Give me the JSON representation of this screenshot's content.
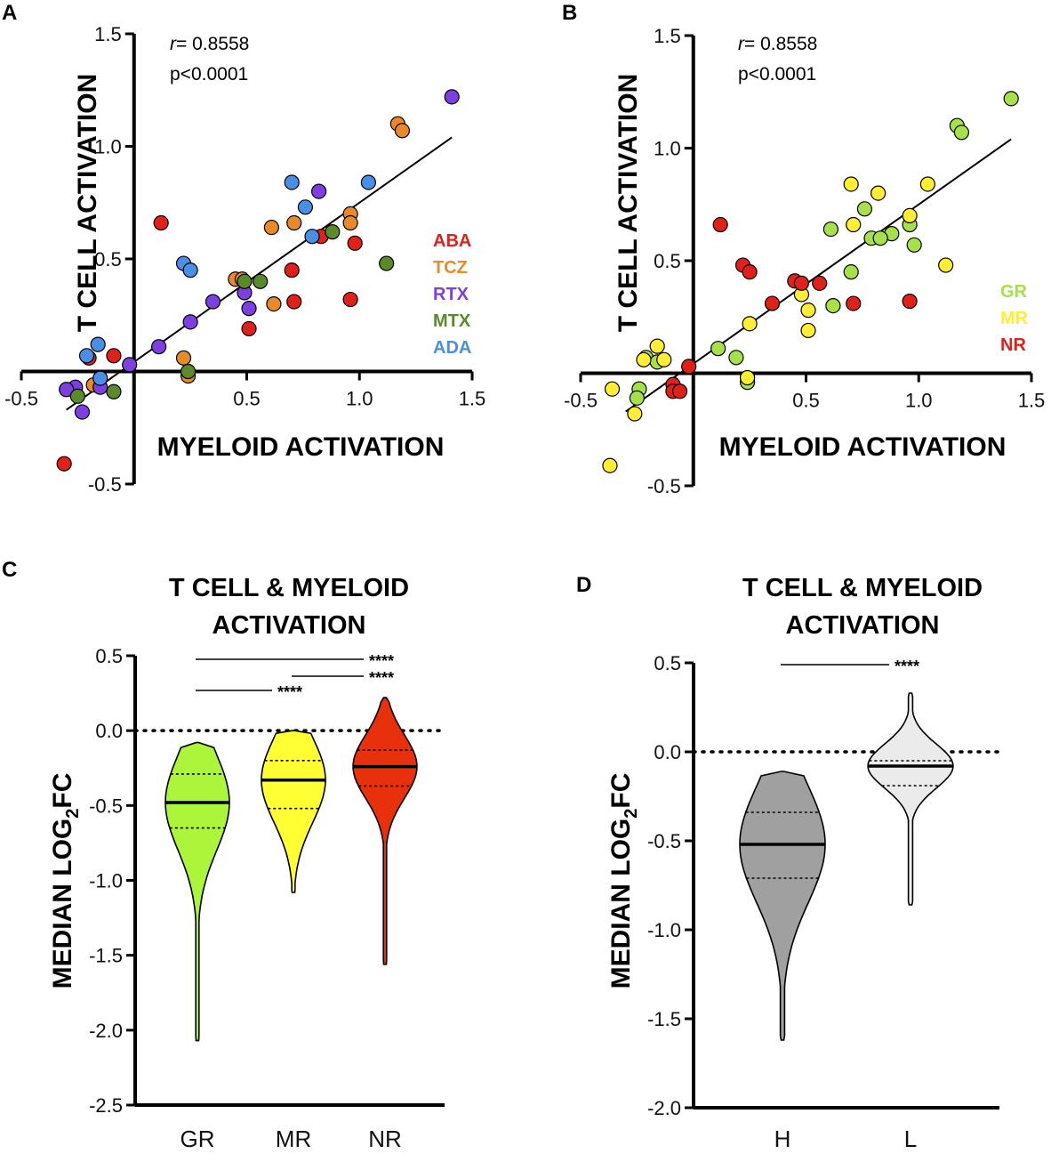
{
  "chart_data": [
    {
      "panel": "A",
      "type": "scatter",
      "xlabel": "MYELOID ACTIVATION",
      "ylabel": "T CELL ACTIVATION",
      "xlim": [
        -0.5,
        1.5
      ],
      "ylim": [
        -0.5,
        1.5
      ],
      "xticks": [
        "-0.5",
        "0.5",
        "1.0",
        "1.5"
      ],
      "yticks": [
        "-0.5",
        "0.5",
        "1.0",
        "1.5"
      ],
      "stat_r_label": "r",
      "stat_r_value": "= 0.8558",
      "stat_p": "p<0.0001",
      "fit_line": {
        "x0": -0.3,
        "y0": -0.17,
        "x1": 1.41,
        "y1": 1.04
      },
      "legend": [
        {
          "name": "ABA",
          "color": "#e0211b"
        },
        {
          "name": "TCZ",
          "color": "#e88a2a"
        },
        {
          "name": "RTX",
          "color": "#7d3fe0"
        },
        {
          "name": "MTX",
          "color": "#5a8a2a"
        },
        {
          "name": "ADA",
          "color": "#4a8fe6"
        }
      ],
      "series": [
        {
          "name": "ABA",
          "color": "#e0211b",
          "points": [
            [
              0.12,
              0.66
            ],
            [
              0.83,
              0.6
            ],
            [
              0.98,
              0.57
            ],
            [
              0.7,
              0.45
            ],
            [
              0.71,
              0.31
            ],
            [
              0.51,
              0.19
            ],
            [
              0.96,
              0.32
            ],
            [
              -0.2,
              0.06
            ],
            [
              -0.09,
              0.07
            ],
            [
              -0.31,
              -0.41
            ]
          ]
        },
        {
          "name": "TCZ",
          "color": "#e88a2a",
          "points": [
            [
              1.17,
              1.1
            ],
            [
              1.19,
              1.07
            ],
            [
              0.96,
              0.7
            ],
            [
              0.96,
              0.66
            ],
            [
              0.71,
              0.66
            ],
            [
              0.61,
              0.64
            ],
            [
              0.45,
              0.41
            ],
            [
              0.48,
              0.41
            ],
            [
              0.62,
              0.3
            ],
            [
              0.22,
              0.06
            ],
            [
              0.24,
              -0.02
            ],
            [
              -0.18,
              -0.06
            ]
          ]
        },
        {
          "name": "RTX",
          "color": "#7d3fe0",
          "points": [
            [
              1.41,
              1.22
            ],
            [
              0.82,
              0.8
            ],
            [
              0.49,
              0.35
            ],
            [
              0.51,
              0.28
            ],
            [
              0.35,
              0.31
            ],
            [
              0.25,
              0.22
            ],
            [
              0.11,
              0.11
            ],
            [
              -0.02,
              0.03
            ],
            [
              -0.26,
              -0.07
            ],
            [
              -0.15,
              -0.07
            ],
            [
              -0.3,
              -0.08
            ],
            [
              -0.23,
              -0.18
            ]
          ]
        },
        {
          "name": "MTX",
          "color": "#5a8a2a",
          "points": [
            [
              0.88,
              0.62
            ],
            [
              1.12,
              0.48
            ],
            [
              0.56,
              0.4
            ],
            [
              0.49,
              0.4
            ],
            [
              0.24,
              0.0
            ],
            [
              -0.09,
              -0.09
            ],
            [
              -0.25,
              -0.11
            ]
          ]
        },
        {
          "name": "ADA",
          "color": "#4a8fe6",
          "points": [
            [
              0.7,
              0.84
            ],
            [
              1.04,
              0.84
            ],
            [
              0.76,
              0.73
            ],
            [
              0.79,
              0.6
            ],
            [
              0.22,
              0.48
            ],
            [
              0.25,
              0.45
            ],
            [
              -0.16,
              0.12
            ],
            [
              -0.21,
              0.07
            ],
            [
              -0.15,
              -0.03
            ]
          ]
        }
      ]
    },
    {
      "panel": "B",
      "type": "scatter",
      "xlabel": "MYELOID ACTIVATION",
      "ylabel": "T CELL ACTIVATION",
      "xlim": [
        -0.5,
        1.5
      ],
      "ylim": [
        -0.5,
        1.5
      ],
      "xticks": [
        "-0.5",
        "0.5",
        "1.0",
        "1.5"
      ],
      "yticks": [
        "-0.5",
        "0.5",
        "1.0",
        "1.5"
      ],
      "stat_r_label": "r",
      "stat_r_value": "= 0.8558",
      "stat_p": "p<0.0001",
      "fit_line": {
        "x0": -0.3,
        "y0": -0.17,
        "x1": 1.41,
        "y1": 1.04
      },
      "legend": [
        {
          "name": "GR",
          "color": "#a8e04a"
        },
        {
          "name": "MR",
          "color": "#ffee33"
        },
        {
          "name": "NR",
          "color": "#e0211b"
        }
      ],
      "series": [
        {
          "name": "GR",
          "color": "#a8e04a",
          "points": [
            [
              1.41,
              1.22
            ],
            [
              1.17,
              1.1
            ],
            [
              1.19,
              1.07
            ],
            [
              0.76,
              0.73
            ],
            [
              0.96,
              0.66
            ],
            [
              0.61,
              0.64
            ],
            [
              0.88,
              0.62
            ],
            [
              0.79,
              0.6
            ],
            [
              0.83,
              0.6
            ],
            [
              0.98,
              0.57
            ],
            [
              0.7,
              0.45
            ],
            [
              0.62,
              0.3
            ],
            [
              0.11,
              0.11
            ],
            [
              0.19,
              0.07
            ],
            [
              -0.21,
              0.07
            ],
            [
              -0.16,
              0.05
            ],
            [
              0.24,
              -0.02
            ],
            [
              0.24,
              -0.04
            ],
            [
              -0.24,
              -0.07
            ],
            [
              -0.25,
              -0.11
            ]
          ]
        },
        {
          "name": "MR",
          "color": "#ffee33",
          "points": [
            [
              0.7,
              0.84
            ],
            [
              0.82,
              0.8
            ],
            [
              1.04,
              0.84
            ],
            [
              0.96,
              0.7
            ],
            [
              0.71,
              0.66
            ],
            [
              1.12,
              0.48
            ],
            [
              0.48,
              0.35
            ],
            [
              0.51,
              0.28
            ],
            [
              0.25,
              0.22
            ],
            [
              0.51,
              0.19
            ],
            [
              -0.16,
              0.12
            ],
            [
              -0.22,
              0.06
            ],
            [
              -0.13,
              0.06
            ],
            [
              0.24,
              -0.02
            ],
            [
              -0.36,
              -0.07
            ],
            [
              -0.26,
              -0.18
            ],
            [
              -0.37,
              -0.41
            ]
          ]
        },
        {
          "name": "NR",
          "color": "#e0211b",
          "points": [
            [
              0.12,
              0.66
            ],
            [
              0.22,
              0.48
            ],
            [
              0.25,
              0.45
            ],
            [
              0.45,
              0.41
            ],
            [
              0.48,
              0.4
            ],
            [
              0.56,
              0.4
            ],
            [
              0.35,
              0.31
            ],
            [
              0.71,
              0.31
            ],
            [
              0.96,
              0.32
            ],
            [
              -0.02,
              0.03
            ],
            [
              -0.09,
              -0.05
            ],
            [
              -0.09,
              -0.08
            ],
            [
              -0.06,
              -0.08
            ]
          ]
        }
      ]
    },
    {
      "panel": "C",
      "type": "violin",
      "title_lines": [
        "T CELL & MYELOID",
        "ACTIVATION"
      ],
      "ylabel_main": "MEDIAN LOG",
      "ylabel_sub": "2",
      "ylabel_tail": "FC",
      "ylim": [
        -2.5,
        0.5
      ],
      "yticks": [
        "0.5",
        "0.0",
        "-0.5",
        "-1.0",
        "-1.5",
        "-2.0",
        "-2.5"
      ],
      "categories": [
        "GR",
        "MR",
        "NR"
      ],
      "colors": [
        "#adf53a",
        "#ffff33",
        "#e8300a"
      ],
      "median": [
        -0.48,
        -0.33,
        -0.24
      ],
      "q1": [
        -0.65,
        -0.52,
        -0.37
      ],
      "q3": [
        -0.29,
        -0.2,
        -0.13
      ],
      "min": [
        -2.07,
        -1.08,
        -1.56
      ],
      "max": [
        -0.08,
        0.0,
        0.22
      ],
      "significance": [
        {
          "from": "GR",
          "to": "NR",
          "label": "****"
        },
        {
          "from": "MR",
          "to": "NR",
          "label": "****"
        },
        {
          "from": "GR",
          "to": "MR",
          "label": "****"
        }
      ]
    },
    {
      "panel": "D",
      "type": "violin",
      "title_lines": [
        "T CELL & MYELOID",
        "ACTIVATION"
      ],
      "ylabel_main": "MEDIAN LOG",
      "ylabel_sub": "2",
      "ylabel_tail": "FC",
      "ylim": [
        -2.0,
        0.5
      ],
      "yticks": [
        "0.5",
        "0.0",
        "-0.5",
        "-1.0",
        "-1.5",
        "-2.0"
      ],
      "categories": [
        "H",
        "L"
      ],
      "colors": [
        "#a0a0a0",
        "#ebebeb"
      ],
      "median": [
        -0.52,
        -0.08
      ],
      "q1": [
        -0.71,
        -0.19
      ],
      "q3": [
        -0.34,
        -0.05
      ],
      "min": [
        -1.62,
        -0.86
      ],
      "max": [
        -0.11,
        0.33
      ],
      "significance": [
        {
          "from": "H",
          "to": "L",
          "label": "****"
        }
      ]
    }
  ]
}
